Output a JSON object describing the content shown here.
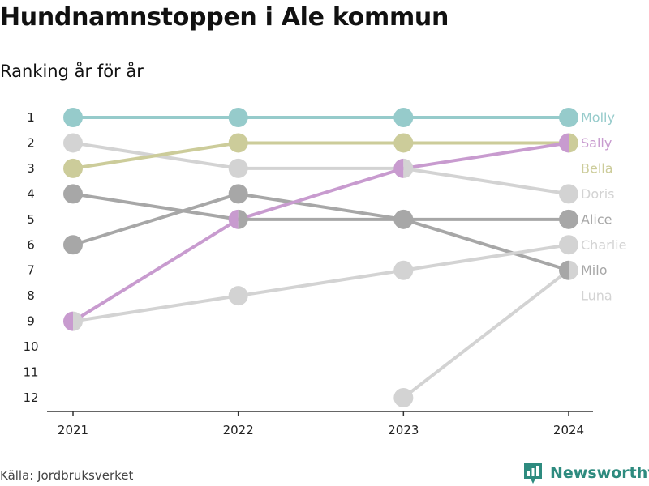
{
  "title": "Hundnamnstoppen i Ale kommun",
  "subtitle": "Ranking år för år",
  "source": "Källa: Jordbruksverket",
  "brand": {
    "name": "Newsworthy",
    "icon": "newsworthy-logo-icon",
    "color": "#2e8b7f"
  },
  "chart_data": {
    "type": "line",
    "subtype": "bump",
    "x": [
      "2021",
      "2022",
      "2023",
      "2024"
    ],
    "y_ticks": [
      "1",
      "2",
      "3",
      "4",
      "5",
      "6",
      "7",
      "8",
      "9",
      "10",
      "11",
      "12"
    ],
    "ylim": [
      1,
      12
    ],
    "y_reversed": true,
    "grid": false,
    "legend": "end-labels-right",
    "series": [
      {
        "name": "Molly",
        "color": "#96cbcb",
        "values": [
          1,
          1,
          1,
          1
        ]
      },
      {
        "name": "Sally",
        "color": "#c89bcf",
        "values": [
          9,
          5,
          3,
          2
        ]
      },
      {
        "name": "Bella",
        "color": "#cccc9a",
        "values": [
          3,
          2,
          2,
          2
        ]
      },
      {
        "name": "Doris",
        "color": "#d3d3d3",
        "values": [
          2,
          3,
          3,
          4
        ]
      },
      {
        "name": "Alice",
        "color": "#a7a7a7",
        "values": [
          4,
          5,
          5,
          5
        ]
      },
      {
        "name": "Charlie",
        "color": "#d3d3d3",
        "values": [
          9,
          8,
          7,
          6
        ]
      },
      {
        "name": "Milo",
        "color": "#a7a7a7",
        "values": [
          6,
          4,
          5,
          7
        ]
      },
      {
        "name": "Luna",
        "color": "#d3d3d3",
        "values": [
          null,
          null,
          12,
          7
        ]
      }
    ]
  }
}
